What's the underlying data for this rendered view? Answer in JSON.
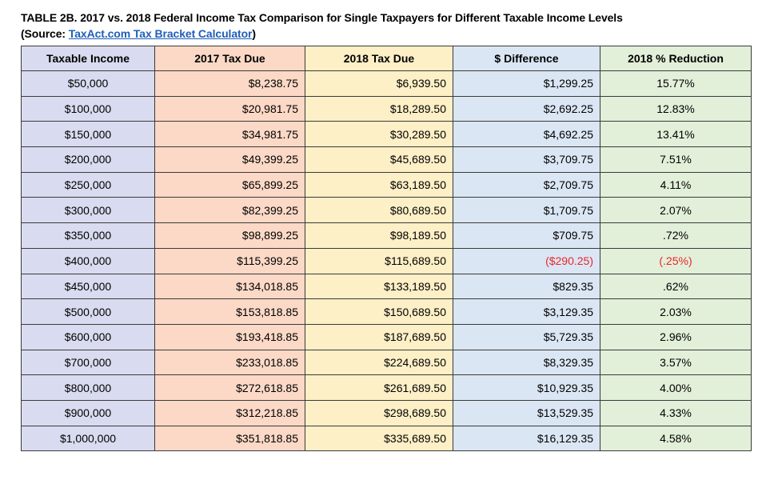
{
  "caption": {
    "line1": "TABLE 2B. 2017 vs. 2018 Federal Income Tax Comparison for Single Taxpayers for Different Taxable Income Levels",
    "source_prefix": "(Source: ",
    "source_link": "TaxAct.com Tax Bracket Calculator",
    "source_suffix": ")"
  },
  "table": {
    "headers": [
      "Taxable Income",
      "2017 Tax Due",
      "2018 Tax Due",
      "$ Difference",
      "2018 % Reduction"
    ],
    "rows": [
      {
        "income": "$50,000",
        "tax2017": "$8,238.75",
        "tax2018": "$6,939.50",
        "diff": "$1,299.25",
        "pct": "15.77%",
        "negative": false
      },
      {
        "income": "$100,000",
        "tax2017": "$20,981.75",
        "tax2018": "$18,289.50",
        "diff": "$2,692.25",
        "pct": "12.83%",
        "negative": false
      },
      {
        "income": "$150,000",
        "tax2017": "$34,981.75",
        "tax2018": "$30,289.50",
        "diff": "$4,692.25",
        "pct": "13.41%",
        "negative": false
      },
      {
        "income": "$200,000",
        "tax2017": "$49,399.25",
        "tax2018": "$45,689.50",
        "diff": "$3,709.75",
        "pct": "7.51%",
        "negative": false
      },
      {
        "income": "$250,000",
        "tax2017": "$65,899.25",
        "tax2018": "$63,189.50",
        "diff": "$2,709.75",
        "pct": "4.11%",
        "negative": false
      },
      {
        "income": "$300,000",
        "tax2017": "$82,399.25",
        "tax2018": "$80,689.50",
        "diff": "$1,709.75",
        "pct": "2.07%",
        "negative": false
      },
      {
        "income": "$350,000",
        "tax2017": "$98,899.25",
        "tax2018": "$98,189.50",
        "diff": "$709.75",
        "pct": ".72%",
        "negative": false
      },
      {
        "income": "$400,000",
        "tax2017": "$115,399.25",
        "tax2018": "$115,689.50",
        "diff": "($290.25)",
        "pct": "(.25%)",
        "negative": true
      },
      {
        "income": "$450,000",
        "tax2017": "$134,018.85",
        "tax2018": "$133,189.50",
        "diff": "$829.35",
        "pct": ".62%",
        "negative": false
      },
      {
        "income": "$500,000",
        "tax2017": "$153,818.85",
        "tax2018": "$150,689.50",
        "diff": "$3,129.35",
        "pct": "2.03%",
        "negative": false
      },
      {
        "income": "$600,000",
        "tax2017": "$193,418.85",
        "tax2018": "$187,689.50",
        "diff": "$5,729.35",
        "pct": "2.96%",
        "negative": false
      },
      {
        "income": "$700,000",
        "tax2017": "$233,018.85",
        "tax2018": "$224,689.50",
        "diff": "$8,329.35",
        "pct": "3.57%",
        "negative": false
      },
      {
        "income": "$800,000",
        "tax2017": "$272,618.85",
        "tax2018": "$261,689.50",
        "diff": "$10,929.35",
        "pct": "4.00%",
        "negative": false
      },
      {
        "income": "$900,000",
        "tax2017": "$312,218.85",
        "tax2018": "$298,689.50",
        "diff": "$13,529.35",
        "pct": "4.33%",
        "negative": false
      },
      {
        "income": "$1,000,000",
        "tax2017": "$351,818.85",
        "tax2018": "$335,689.50",
        "diff": "$16,129.35",
        "pct": "4.58%",
        "negative": false
      }
    ]
  },
  "colors": {
    "income_col": "#d9dcf0",
    "tax2017_col": "#fbd9c6",
    "tax2018_col": "#fdefc6",
    "diff_col": "#dbe6f4",
    "pct_col": "#e2efd9",
    "negative_text": "#e8272a",
    "link": "#1f5fb8"
  }
}
